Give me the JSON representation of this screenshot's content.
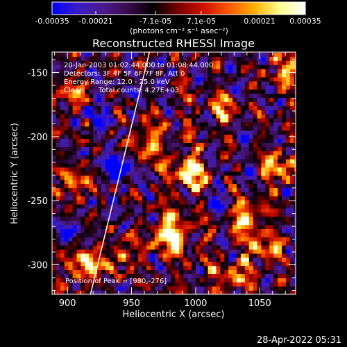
{
  "chart_data": {
    "type": "heatmap",
    "title": "Reconstructed RHESSI Image",
    "xlabel": "Heliocentric X (arcsec)",
    "ylabel": "Heliocentric Y (arcsec)",
    "xlim": [
      888,
      1078
    ],
    "ylim": [
      -323,
      -134
    ],
    "x_ticks": [
      {
        "value": 900,
        "label": "900"
      },
      {
        "value": 950,
        "label": "950"
      },
      {
        "value": 1000,
        "label": "1000"
      },
      {
        "value": 1050,
        "label": "1050"
      }
    ],
    "y_ticks": [
      {
        "value": -150,
        "label": "-150"
      },
      {
        "value": -200,
        "label": "-200"
      },
      {
        "value": -250,
        "label": "-250"
      },
      {
        "value": -300,
        "label": "-300"
      }
    ],
    "colorbar": {
      "range": [
        -0.00035,
        0.00035
      ],
      "tick_labels": [
        "-0.00035",
        "-0.00021",
        "-7.1e-05",
        "7.1e-05",
        "0.00021",
        "0.00035"
      ],
      "unit_label": "(photons cm⁻² s⁻¹ asec⁻²)",
      "colormap": [
        "#0000ff",
        "#3b1cc4",
        "#4a1a8e",
        "#3a0a4a",
        "#000000",
        "#7a0000",
        "#d01000",
        "#ff5a00",
        "#ffb000",
        "#ffff90",
        "#ffffff"
      ]
    },
    "annotations": {
      "time_range": "20-Jan-2003 01:02:44.000 to 01:08:44.000",
      "detectors": "Detectors: 3F 4F 5F 6F 7F 8F, Att 0",
      "energy_range": "Energy Range: 12.0 - 25.0 keV",
      "method": "Clean",
      "total_counts": "Total counts: 4.27E+03",
      "peak": "Position of Peak = [980,-276]"
    },
    "peak_position": [
      980,
      -276
    ],
    "limb_line": [
      [
        918,
        -323
      ],
      [
        964,
        -134
      ]
    ],
    "hot_spots": [
      {
        "x": 980,
        "y": -276,
        "level": 1.0
      },
      {
        "x": 996,
        "y": -228,
        "level": 0.85
      },
      {
        "x": 1040,
        "y": -262,
        "level": 0.9
      },
      {
        "x": 1022,
        "y": -178,
        "level": 0.6
      },
      {
        "x": 1052,
        "y": -288,
        "level": 0.75
      },
      {
        "x": 1064,
        "y": -224,
        "level": 0.7
      },
      {
        "x": 1072,
        "y": -146,
        "level": 0.6
      },
      {
        "x": 916,
        "y": -300,
        "level": 0.8
      },
      {
        "x": 906,
        "y": -236,
        "level": 0.5
      },
      {
        "x": 906,
        "y": -166,
        "level": 0.55
      },
      {
        "x": 960,
        "y": -206,
        "level": 0.65
      },
      {
        "x": 944,
        "y": -292,
        "level": 0.55
      },
      {
        "x": 1030,
        "y": -310,
        "level": 0.6
      }
    ],
    "cold_spots": [
      {
        "x": 942,
        "y": -222,
        "level": 0.9
      },
      {
        "x": 898,
        "y": -272,
        "level": 0.6
      },
      {
        "x": 966,
        "y": -158,
        "level": 0.5
      },
      {
        "x": 1016,
        "y": -250,
        "level": 0.4
      },
      {
        "x": 922,
        "y": -180,
        "level": 0.45
      }
    ]
  },
  "footer": {
    "date": "28-Apr-2022 05:31"
  }
}
